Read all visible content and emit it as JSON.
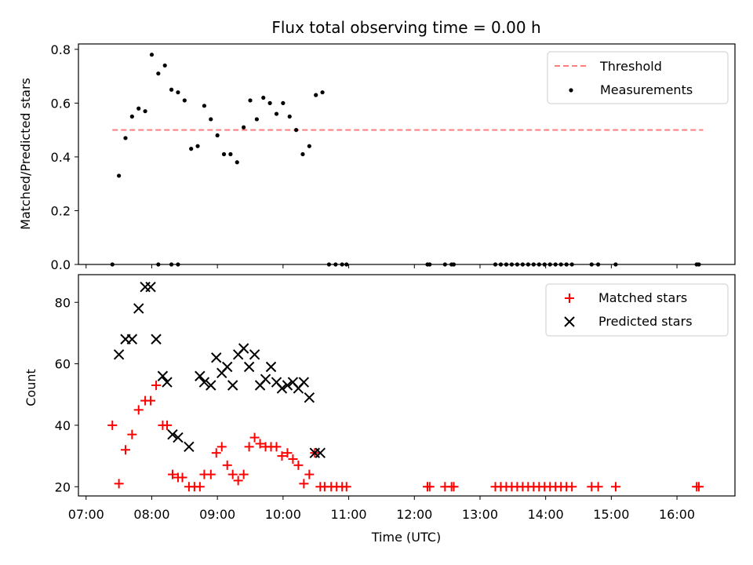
{
  "chart_data": [
    {
      "type": "scatter",
      "title": "Flux total observing time = 0.00 h",
      "ylabel": "Matched/Predicted stars",
      "xlabel": "",
      "xlim": [
        "06:53",
        "16:53"
      ],
      "ylim": [
        0,
        0.82
      ],
      "yticks": [
        "0.0",
        "0.2",
        "0.4",
        "0.6",
        "0.8"
      ],
      "legend": {
        "position": "top-right",
        "entries": [
          "Threshold",
          "Measurements"
        ]
      },
      "threshold": {
        "name": "Threshold",
        "y": 0.5,
        "x_start": "07:24",
        "x_end": "16:24",
        "color": "#ff7f7f",
        "style": "dashed"
      },
      "series": [
        {
          "name": "Measurements",
          "color": "#000000",
          "marker": "dot",
          "x": [
            "07:24",
            "07:30",
            "07:36",
            "07:42",
            "07:48",
            "07:54",
            "08:00",
            "08:06",
            "08:12",
            "08:18",
            "08:24",
            "08:30",
            "08:36",
            "08:42",
            "08:48",
            "08:54",
            "09:00",
            "09:06",
            "09:12",
            "09:18",
            "09:24",
            "09:30",
            "09:36",
            "09:42",
            "09:48",
            "09:54",
            "10:00",
            "10:06",
            "10:12",
            "10:18",
            "10:24",
            "10:30",
            "10:36",
            "10:42",
            "10:48",
            "10:54",
            "10:58",
            "12:12",
            "12:14",
            "12:28",
            "12:34",
            "12:36",
            "13:14",
            "13:19",
            "13:24",
            "13:29",
            "13:34",
            "13:39",
            "13:44",
            "13:49",
            "13:54",
            "13:59",
            "14:04",
            "14:09",
            "14:14",
            "14:19",
            "14:24",
            "14:42",
            "14:48",
            "15:04",
            "16:18",
            "16:20"
          ],
          "y": [
            0.0,
            0.33,
            0.47,
            0.55,
            0.58,
            0.57,
            0.78,
            0.71,
            0.74,
            0.65,
            0.64,
            0.61,
            0.43,
            0.44,
            0.59,
            0.54,
            0.48,
            0.41,
            0.41,
            0.38,
            0.51,
            0.61,
            0.54,
            0.62,
            0.6,
            0.56,
            0.6,
            0.55,
            0.5,
            0.41,
            0.44,
            0.63,
            0.64,
            0.0,
            0.0,
            0.0,
            0.0,
            0.0,
            0.0,
            0.0,
            0.0,
            0.0,
            0.0,
            0.0,
            0.0,
            0.0,
            0.0,
            0.0,
            0.0,
            0.0,
            0.0,
            0.0,
            0.0,
            0.0,
            0.0,
            0.0,
            0.0,
            0.0,
            0.0,
            0.0,
            0.0,
            0.0
          ],
          "extra_zero_x": [
            "08:06",
            "08:18",
            "08:24"
          ]
        }
      ]
    },
    {
      "type": "scatter",
      "title": "",
      "ylabel": "Count",
      "xlabel": "Time (UTC)",
      "xlim": [
        "06:53",
        "16:53"
      ],
      "ylim": [
        17,
        89
      ],
      "xticks": [
        "07:00",
        "08:00",
        "09:00",
        "10:00",
        "11:00",
        "12:00",
        "13:00",
        "14:00",
        "15:00",
        "16:00"
      ],
      "yticks": [
        "20",
        "40",
        "60",
        "80"
      ],
      "legend": {
        "position": "top-right",
        "entries": [
          "Matched stars",
          "Predicted stars"
        ]
      },
      "series": [
        {
          "name": "Matched stars",
          "color": "#ff0000",
          "marker": "plus",
          "x": [
            "07:24",
            "07:30",
            "07:36",
            "07:42",
            "07:48",
            "07:54",
            "07:59",
            "08:04",
            "08:10",
            "08:14",
            "08:19",
            "08:24",
            "08:28",
            "08:34",
            "08:39",
            "08:44",
            "08:48",
            "08:54",
            "08:59",
            "09:04",
            "09:09",
            "09:14",
            "09:19",
            "09:24",
            "09:29",
            "09:34",
            "09:39",
            "09:44",
            "09:49",
            "09:54",
            "09:59",
            "10:04",
            "10:09",
            "10:14",
            "10:19",
            "10:24",
            "10:29",
            "10:34",
            "10:38",
            "10:44",
            "10:49",
            "10:54",
            "10:58",
            "12:12",
            "12:14",
            "12:28",
            "12:34",
            "12:36",
            "13:14",
            "13:19",
            "13:24",
            "13:29",
            "13:34",
            "13:39",
            "13:44",
            "13:49",
            "13:54",
            "13:59",
            "14:04",
            "14:09",
            "14:14",
            "14:19",
            "14:24",
            "14:42",
            "14:48",
            "15:04",
            "16:18",
            "16:20"
          ],
          "y": [
            40,
            21,
            32,
            37,
            45,
            48,
            48,
            53,
            40,
            40,
            24,
            23,
            23,
            20,
            20,
            20,
            24,
            24,
            31,
            33,
            27,
            24,
            22,
            24,
            33,
            36,
            34,
            33,
            33,
            33,
            30,
            31,
            29,
            27,
            21,
            24,
            31,
            20,
            20,
            20,
            20,
            20,
            20,
            20,
            20,
            20,
            20,
            20,
            20,
            20,
            20,
            20,
            20,
            20,
            20,
            20,
            20,
            20,
            20,
            20,
            20,
            20,
            20,
            20,
            20,
            20,
            20,
            20
          ]
        },
        {
          "name": "Predicted stars",
          "color": "#000000",
          "marker": "x",
          "x": [
            "07:30",
            "07:36",
            "07:42",
            "07:48",
            "07:54",
            "07:59",
            "08:04",
            "08:10",
            "08:14",
            "08:19",
            "08:24",
            "08:34",
            "08:44",
            "08:48",
            "08:54",
            "08:59",
            "09:04",
            "09:09",
            "09:14",
            "09:19",
            "09:24",
            "09:29",
            "09:34",
            "09:39",
            "09:44",
            "09:49",
            "09:54",
            "09:59",
            "10:04",
            "10:09",
            "10:14",
            "10:19",
            "10:24",
            "10:29",
            "10:34"
          ],
          "y": [
            63,
            68,
            68,
            78,
            85,
            85,
            68,
            56,
            54,
            37,
            36,
            33,
            56,
            54,
            53,
            62,
            57,
            59,
            53,
            63,
            65,
            59,
            63,
            53,
            55,
            59,
            54,
            52,
            53,
            54,
            52,
            54,
            49,
            31,
            31
          ]
        }
      ]
    }
  ]
}
